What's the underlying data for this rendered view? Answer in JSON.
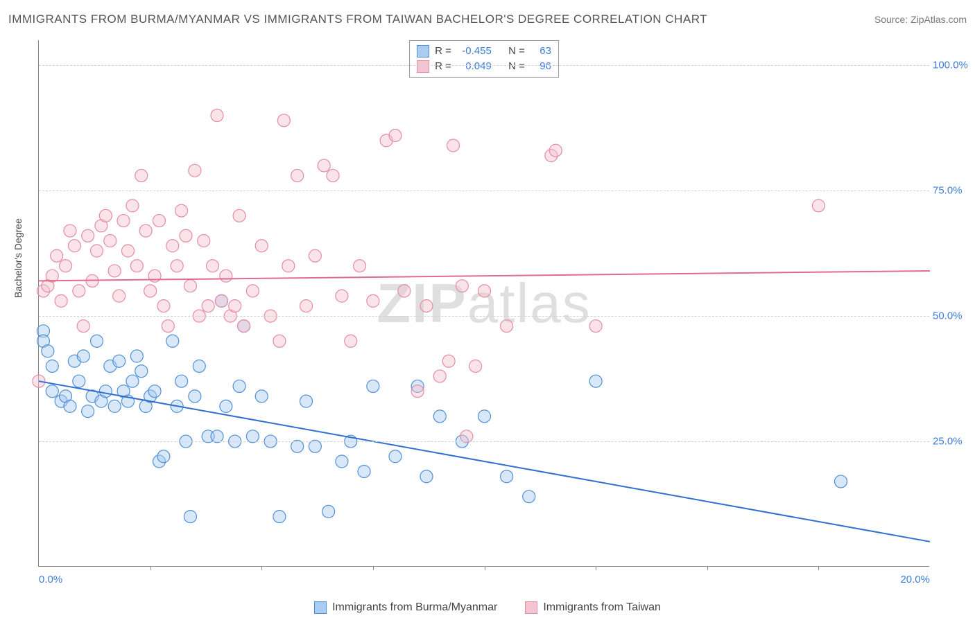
{
  "title": "IMMIGRANTS FROM BURMA/MYANMAR VS IMMIGRANTS FROM TAIWAN BACHELOR'S DEGREE CORRELATION CHART",
  "source": "Source: ZipAtlas.com",
  "watermark_bold": "ZIP",
  "watermark_light": "atlas",
  "chart": {
    "type": "scatter",
    "ylabel": "Bachelor's Degree",
    "xlim": [
      0,
      20
    ],
    "ylim": [
      0,
      105
    ],
    "xtick_labels": [
      "0.0%",
      "20.0%"
    ],
    "xtick_values": [
      0,
      20
    ],
    "xtick_minor": [
      2.5,
      5,
      7.5,
      10,
      12.5,
      15,
      17.5
    ],
    "ytick_labels": [
      "25.0%",
      "50.0%",
      "75.0%",
      "100.0%"
    ],
    "ytick_values": [
      25,
      50,
      75,
      100
    ],
    "grid_color": "#d0d0d0",
    "axis_color": "#888888",
    "background_color": "#ffffff",
    "marker_radius": 9,
    "marker_opacity": 0.45,
    "line_width": 2
  },
  "series": [
    {
      "name": "Immigrants from Burma/Myanmar",
      "fill": "#a9cdf0",
      "stroke": "#4f8fd6",
      "line_color": "#2f6fd0",
      "R": "-0.455",
      "N": "63",
      "trend": {
        "x1": 0,
        "y1": 37,
        "x2": 20,
        "y2": 5
      },
      "points": [
        [
          0.1,
          47
        ],
        [
          0.1,
          45
        ],
        [
          0.2,
          43
        ],
        [
          0.3,
          40
        ],
        [
          0.3,
          35
        ],
        [
          0.5,
          33
        ],
        [
          0.6,
          34
        ],
        [
          0.7,
          32
        ],
        [
          0.8,
          41
        ],
        [
          0.9,
          37
        ],
        [
          1.0,
          42
        ],
        [
          1.1,
          31
        ],
        [
          1.2,
          34
        ],
        [
          1.3,
          45
        ],
        [
          1.4,
          33
        ],
        [
          1.5,
          35
        ],
        [
          1.6,
          40
        ],
        [
          1.7,
          32
        ],
        [
          1.8,
          41
        ],
        [
          1.9,
          35
        ],
        [
          2.0,
          33
        ],
        [
          2.1,
          37
        ],
        [
          2.2,
          42
        ],
        [
          2.3,
          39
        ],
        [
          2.4,
          32
        ],
        [
          2.5,
          34
        ],
        [
          2.6,
          35
        ],
        [
          2.7,
          21
        ],
        [
          2.8,
          22
        ],
        [
          3.0,
          45
        ],
        [
          3.1,
          32
        ],
        [
          3.2,
          37
        ],
        [
          3.3,
          25
        ],
        [
          3.4,
          10
        ],
        [
          3.5,
          34
        ],
        [
          3.6,
          40
        ],
        [
          3.8,
          26
        ],
        [
          4.0,
          26
        ],
        [
          4.1,
          53
        ],
        [
          4.2,
          32
        ],
        [
          4.4,
          25
        ],
        [
          4.5,
          36
        ],
        [
          4.6,
          48
        ],
        [
          4.8,
          26
        ],
        [
          5.0,
          34
        ],
        [
          5.2,
          25
        ],
        [
          5.4,
          10
        ],
        [
          5.8,
          24
        ],
        [
          6.0,
          33
        ],
        [
          6.2,
          24
        ],
        [
          6.5,
          11
        ],
        [
          6.8,
          21
        ],
        [
          7.0,
          25
        ],
        [
          7.3,
          19
        ],
        [
          7.5,
          36
        ],
        [
          8.0,
          22
        ],
        [
          8.5,
          36
        ],
        [
          8.7,
          18
        ],
        [
          9.0,
          30
        ],
        [
          9.5,
          25
        ],
        [
          10.0,
          30
        ],
        [
          10.5,
          18
        ],
        [
          11.0,
          14
        ],
        [
          12.5,
          37
        ],
        [
          18.0,
          17
        ]
      ]
    },
    {
      "name": "Immigrants from Taiwan",
      "fill": "#f5c4d1",
      "stroke": "#e48aa5",
      "line_color": "#e26a8f",
      "R": "0.049",
      "N": "96",
      "trend": {
        "x1": 0,
        "y1": 57,
        "x2": 20,
        "y2": 59
      },
      "points": [
        [
          0.0,
          37
        ],
        [
          0.1,
          55
        ],
        [
          0.2,
          56
        ],
        [
          0.3,
          58
        ],
        [
          0.4,
          62
        ],
        [
          0.5,
          53
        ],
        [
          0.6,
          60
        ],
        [
          0.7,
          67
        ],
        [
          0.8,
          64
        ],
        [
          0.9,
          55
        ],
        [
          1.0,
          48
        ],
        [
          1.1,
          66
        ],
        [
          1.2,
          57
        ],
        [
          1.3,
          63
        ],
        [
          1.4,
          68
        ],
        [
          1.5,
          70
        ],
        [
          1.6,
          65
        ],
        [
          1.7,
          59
        ],
        [
          1.8,
          54
        ],
        [
          1.9,
          69
        ],
        [
          2.0,
          63
        ],
        [
          2.1,
          72
        ],
        [
          2.2,
          60
        ],
        [
          2.3,
          78
        ],
        [
          2.4,
          67
        ],
        [
          2.5,
          55
        ],
        [
          2.6,
          58
        ],
        [
          2.7,
          69
        ],
        [
          2.8,
          52
        ],
        [
          2.9,
          48
        ],
        [
          3.0,
          64
        ],
        [
          3.1,
          60
        ],
        [
          3.2,
          71
        ],
        [
          3.3,
          66
        ],
        [
          3.4,
          56
        ],
        [
          3.5,
          79
        ],
        [
          3.6,
          50
        ],
        [
          3.7,
          65
        ],
        [
          3.8,
          52
        ],
        [
          3.9,
          60
        ],
        [
          4.0,
          90
        ],
        [
          4.1,
          53
        ],
        [
          4.2,
          58
        ],
        [
          4.3,
          50
        ],
        [
          4.4,
          52
        ],
        [
          4.5,
          70
        ],
        [
          4.6,
          48
        ],
        [
          4.8,
          55
        ],
        [
          5.0,
          64
        ],
        [
          5.2,
          50
        ],
        [
          5.4,
          45
        ],
        [
          5.5,
          89
        ],
        [
          5.6,
          60
        ],
        [
          5.8,
          78
        ],
        [
          6.0,
          52
        ],
        [
          6.2,
          62
        ],
        [
          6.4,
          80
        ],
        [
          6.6,
          78
        ],
        [
          6.8,
          54
        ],
        [
          7.0,
          45
        ],
        [
          7.2,
          60
        ],
        [
          7.5,
          53
        ],
        [
          7.8,
          85
        ],
        [
          8.0,
          86
        ],
        [
          8.2,
          55
        ],
        [
          8.5,
          35
        ],
        [
          8.7,
          52
        ],
        [
          9.0,
          38
        ],
        [
          9.2,
          41
        ],
        [
          9.3,
          84
        ],
        [
          9.5,
          56
        ],
        [
          9.6,
          26
        ],
        [
          9.8,
          40
        ],
        [
          10.0,
          55
        ],
        [
          10.5,
          48
        ],
        [
          11.5,
          82
        ],
        [
          11.6,
          83
        ],
        [
          12.5,
          48
        ],
        [
          17.5,
          72
        ]
      ]
    }
  ],
  "legend_top": {
    "R_label": "R =",
    "N_label": "N ="
  },
  "legend_bottom": {
    "items": [
      "Immigrants from Burma/Myanmar",
      "Immigrants from Taiwan"
    ]
  }
}
